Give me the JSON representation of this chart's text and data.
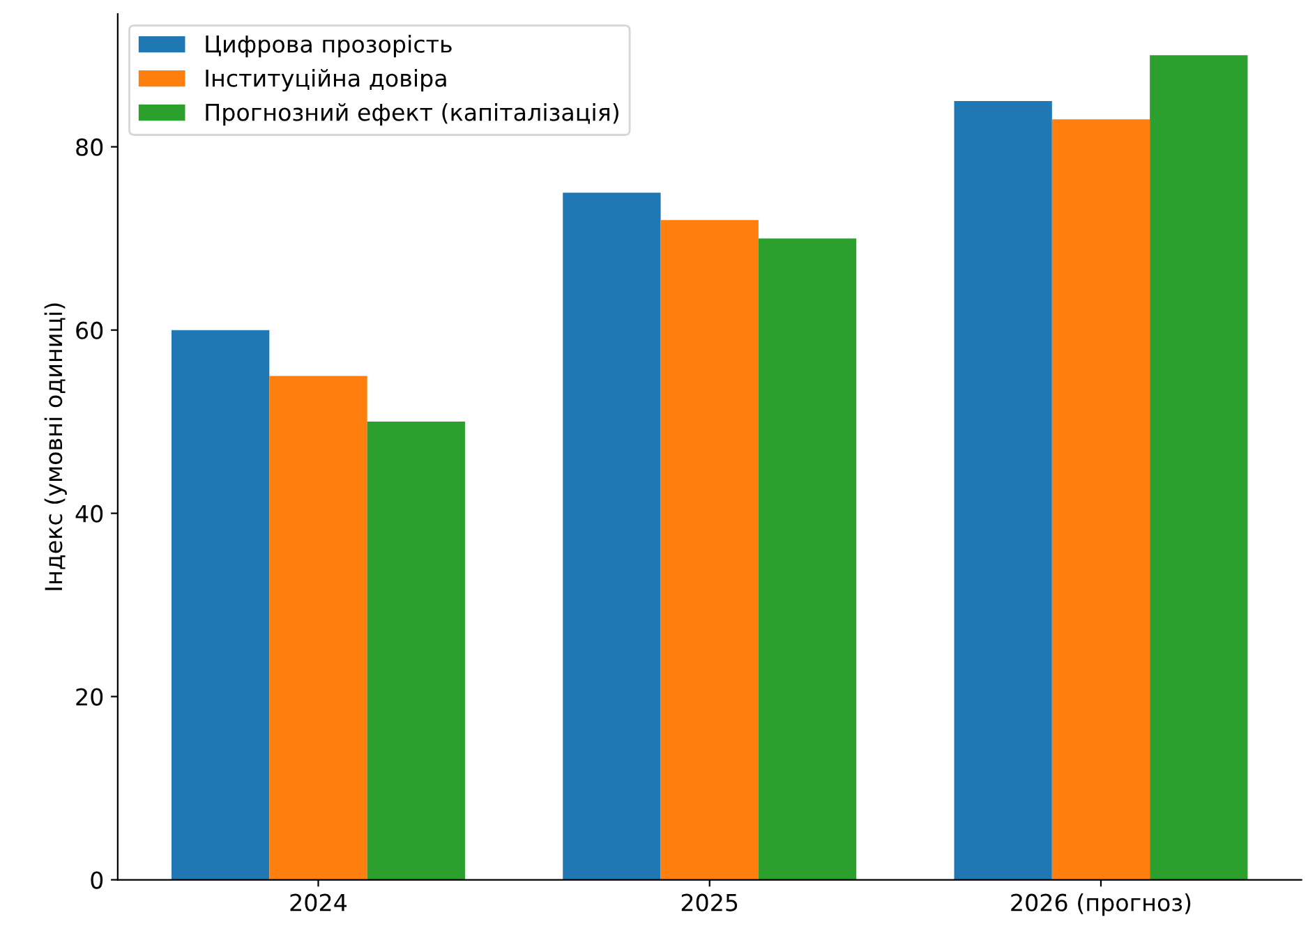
{
  "chart_data": {
    "type": "bar",
    "ylabel": "Індекс (умовні одиниці)",
    "categories": [
      "2024",
      "2025",
      "2026 (прогноз)"
    ],
    "series": [
      {
        "name": "Цифрова прозорість",
        "color": "#1f77b4",
        "values": [
          60,
          75,
          85
        ]
      },
      {
        "name": "Інституційна довіра",
        "color": "#ff7f0e",
        "values": [
          55,
          72,
          83
        ]
      },
      {
        "name": "Прогнозний ефект (капіталізація)",
        "color": "#2ca02c",
        "values": [
          50,
          70,
          90
        ]
      }
    ],
    "ylim": [
      0,
      94.5
    ],
    "yticks": [
      0,
      20,
      40,
      60,
      80
    ],
    "grid": false,
    "legend": "top left"
  }
}
